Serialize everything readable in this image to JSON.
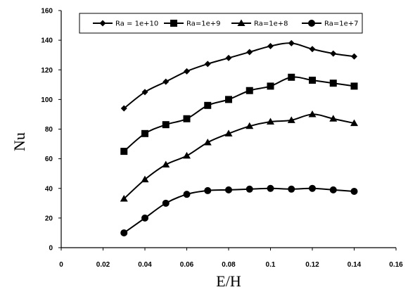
{
  "chart_data": {
    "type": "line",
    "title": "",
    "xlabel": "E/H",
    "ylabel": "Nu",
    "xlim": [
      0,
      0.16
    ],
    "ylim": [
      0,
      160
    ],
    "xticks": [
      "0",
      "0.02",
      "0.04",
      "0.06",
      "0.08",
      "0.1",
      "0.12",
      "0.14",
      "0.16"
    ],
    "yticks": [
      "0",
      "20",
      "40",
      "60",
      "80",
      "100",
      "120",
      "140",
      "160"
    ],
    "grid": false,
    "legend_position": "top",
    "x": [
      0.03,
      0.04,
      0.05,
      0.06,
      0.07,
      0.08,
      0.09,
      0.1,
      0.11,
      0.12,
      0.13,
      0.14
    ],
    "series": [
      {
        "name": "Ra = 1e+10",
        "marker": "diamond",
        "values": [
          94,
          105,
          112,
          119,
          124,
          128,
          132,
          136,
          138,
          134,
          131,
          129
        ]
      },
      {
        "name": "Ra=1e+9",
        "marker": "square",
        "values": [
          65,
          77,
          83,
          87,
          96,
          100,
          106,
          109,
          115,
          113,
          111,
          109
        ]
      },
      {
        "name": "Ra=1e+8",
        "marker": "triangle",
        "values": [
          33,
          46,
          56,
          62,
          71,
          77,
          82,
          85,
          86,
          90,
          87,
          84
        ]
      },
      {
        "name": "Ra=1e+7",
        "marker": "circle",
        "values": [
          10,
          20,
          30,
          36,
          38.5,
          39,
          39.5,
          40,
          39.5,
          40,
          39,
          38
        ]
      }
    ],
    "line_color": "#000000"
  }
}
